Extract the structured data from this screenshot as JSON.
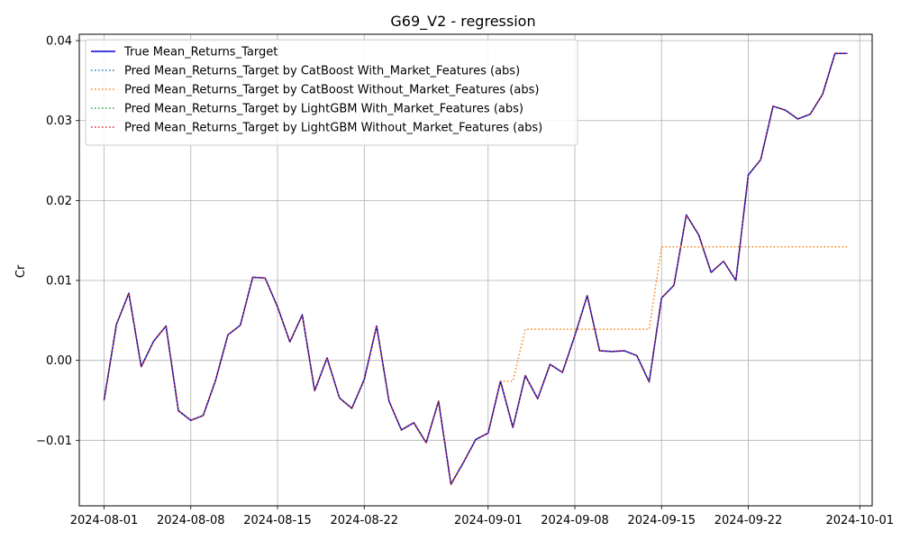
{
  "chart_data": {
    "type": "line",
    "title": "G69_V2 - regression",
    "xlabel": "",
    "ylabel": "Cr",
    "xlim": [
      "2024-07-30",
      "2024-10-02"
    ],
    "ylim": [
      -0.0182,
      0.0408
    ],
    "xticks": [
      "2024-08-01",
      "2024-08-08",
      "2024-08-15",
      "2024-08-22",
      "2024-09-01",
      "2024-09-08",
      "2024-09-15",
      "2024-09-22",
      "2024-10-01"
    ],
    "yticks": [
      -0.01,
      0.0,
      0.01,
      0.02,
      0.03,
      0.04
    ],
    "ytick_labels": [
      "−0.01",
      "0.00",
      "0.01",
      "0.02",
      "0.03",
      "0.04"
    ],
    "grid": true,
    "legend_position": "top-left",
    "x": [
      "2024-08-01",
      "2024-08-02",
      "2024-08-03",
      "2024-08-04",
      "2024-08-05",
      "2024-08-06",
      "2024-08-07",
      "2024-08-08",
      "2024-08-09",
      "2024-08-10",
      "2024-08-11",
      "2024-08-12",
      "2024-08-13",
      "2024-08-14",
      "2024-08-15",
      "2024-08-16",
      "2024-08-17",
      "2024-08-18",
      "2024-08-19",
      "2024-08-20",
      "2024-08-21",
      "2024-08-22",
      "2024-08-23",
      "2024-08-24",
      "2024-08-25",
      "2024-08-26",
      "2024-08-27",
      "2024-08-28",
      "2024-08-29",
      "2024-08-30",
      "2024-08-31",
      "2024-09-01",
      "2024-09-02",
      "2024-09-03",
      "2024-09-04",
      "2024-09-05",
      "2024-09-06",
      "2024-09-07",
      "2024-09-08",
      "2024-09-09",
      "2024-09-10",
      "2024-09-11",
      "2024-09-12",
      "2024-09-13",
      "2024-09-14",
      "2024-09-15",
      "2024-09-16",
      "2024-09-17",
      "2024-09-18",
      "2024-09-19",
      "2024-09-20",
      "2024-09-21",
      "2024-09-22",
      "2024-09-23",
      "2024-09-24",
      "2024-09-25",
      "2024-09-26",
      "2024-09-27",
      "2024-09-28",
      "2024-09-29",
      "2024-09-30"
    ],
    "series": [
      {
        "name": "True Mean_Returns_Target",
        "color": "#0000cd",
        "style": "solid",
        "values": [
          -0.005,
          0.0045,
          0.0084,
          -0.0008,
          0.0024,
          0.0043,
          -0.0063,
          -0.0075,
          -0.0069,
          -0.0025,
          0.0032,
          0.0044,
          0.0104,
          0.0103,
          0.0067,
          0.0023,
          0.0057,
          -0.0038,
          0.0003,
          -0.0047,
          -0.006,
          -0.0024,
          0.0043,
          -0.0051,
          -0.0087,
          -0.0078,
          -0.0103,
          -0.0051,
          -0.0155,
          -0.0128,
          -0.0099,
          -0.0091,
          -0.0026,
          -0.0084,
          -0.0019,
          -0.0048,
          -0.0005,
          -0.0015,
          0.0031,
          0.0081,
          0.0012,
          0.0011,
          0.0012,
          0.0006,
          -0.0027,
          0.0078,
          0.0094,
          0.0182,
          0.0157,
          0.011,
          0.0124,
          0.01,
          0.0232,
          0.0251,
          0.0318,
          0.0313,
          0.0302,
          0.0308,
          0.0333,
          0.0384,
          0.0384
        ]
      },
      {
        "name": "Pred Mean_Returns_Target by CatBoost With_Market_Features (abs)",
        "color": "#1f77b4",
        "style": "dotted",
        "values": [
          -0.005,
          0.0045,
          0.0084,
          -0.0008,
          0.0024,
          0.0043,
          -0.0063,
          -0.0075,
          -0.0069,
          -0.0025,
          0.0032,
          0.0044,
          0.0104,
          0.0103,
          0.0067,
          0.0023,
          0.0057,
          -0.0038,
          0.0003,
          -0.0047,
          -0.006,
          -0.0024,
          0.0043,
          -0.0051,
          -0.0087,
          -0.0078,
          -0.0103,
          -0.0051,
          -0.0155,
          -0.0128,
          -0.0099,
          -0.0091,
          -0.0026,
          -0.0084,
          -0.0019,
          -0.0048,
          -0.0005,
          -0.0015,
          0.0031,
          0.0081,
          0.0012,
          0.0011,
          0.0012,
          0.0006,
          -0.0027,
          0.0078,
          0.0094,
          0.0182,
          0.0157,
          0.011,
          0.0124,
          0.01,
          0.0232,
          0.0251,
          0.0318,
          0.0313,
          0.0302,
          0.0308,
          0.0333,
          0.0384,
          0.0384
        ]
      },
      {
        "name": "Pred Mean_Returns_Target by CatBoost Without_Market_Features (abs)",
        "color": "#ff7f0e",
        "style": "dotted",
        "values": [
          -0.005,
          0.0045,
          0.0084,
          -0.0008,
          0.0024,
          0.0043,
          -0.0063,
          -0.0075,
          -0.0069,
          -0.0025,
          0.0032,
          0.0044,
          0.0104,
          0.0103,
          0.0067,
          0.0023,
          0.0057,
          -0.0038,
          0.0003,
          -0.0047,
          -0.006,
          -0.0024,
          0.0043,
          -0.0051,
          -0.0087,
          -0.0078,
          -0.0103,
          -0.0051,
          -0.0155,
          -0.0128,
          -0.0099,
          -0.0091,
          -0.0026,
          -0.0026,
          0.0039,
          0.0039,
          0.0039,
          0.0039,
          0.0039,
          0.0039,
          0.0039,
          0.0039,
          0.0039,
          0.0039,
          0.0039,
          0.0142,
          0.0142,
          0.0142,
          0.0142,
          0.0142,
          0.0142,
          0.0142,
          0.0142,
          0.0142,
          0.0142,
          0.0142,
          0.0142,
          0.0142,
          0.0142,
          0.0142,
          0.0142
        ]
      },
      {
        "name": "Pred Mean_Returns_Target by LightGBM With_Market_Features (abs)",
        "color": "#2ca02c",
        "style": "dotted",
        "values": [
          -0.005,
          0.0045,
          0.0084,
          -0.0008,
          0.0024,
          0.0043,
          -0.0063,
          -0.0075,
          -0.0069,
          -0.0025,
          0.0032,
          0.0044,
          0.0104,
          0.0103,
          0.0067,
          0.0023,
          0.0057,
          -0.0038,
          0.0003,
          -0.0047,
          -0.006,
          -0.0024,
          0.0043,
          -0.0051,
          -0.0087,
          -0.0078,
          -0.0103,
          -0.0051,
          -0.0155,
          -0.0128,
          -0.0099,
          -0.0091,
          -0.0026,
          -0.0084,
          -0.0019,
          -0.0048,
          -0.0005,
          -0.0015,
          0.0031,
          0.0081,
          0.0012,
          0.0011,
          0.0012,
          0.0006,
          -0.0027,
          0.0078,
          0.0094,
          0.0182,
          0.0157,
          0.011,
          0.0124,
          0.01,
          0.0232,
          0.0251,
          0.0318,
          0.0313,
          0.0302,
          0.0308,
          0.0333,
          0.0384,
          0.0384
        ]
      },
      {
        "name": "Pred Mean_Returns_Target by LightGBM Without_Market_Features (abs)",
        "color": "#d62728",
        "style": "dotted",
        "values": [
          -0.005,
          0.0045,
          0.0084,
          -0.0008,
          0.0024,
          0.0043,
          -0.0063,
          -0.0075,
          -0.0069,
          -0.0025,
          0.0032,
          0.0044,
          0.0104,
          0.0103,
          0.0067,
          0.0023,
          0.0057,
          -0.0038,
          0.0003,
          -0.0047,
          -0.006,
          -0.0024,
          0.0043,
          -0.0051,
          -0.0087,
          -0.0078,
          -0.0103,
          -0.0051,
          -0.0155,
          -0.0128,
          -0.0099,
          -0.0091,
          -0.0026,
          -0.0084,
          -0.0019,
          -0.0048,
          -0.0005,
          -0.0015,
          0.0031,
          0.0081,
          0.0012,
          0.0011,
          0.0012,
          0.0006,
          -0.0027,
          0.0078,
          0.0094,
          0.0182,
          0.0157,
          0.011,
          0.0124,
          0.01,
          0.0232,
          0.0251,
          0.0318,
          0.0313,
          0.0302,
          0.0308,
          0.0333,
          0.0384,
          0.0384
        ]
      }
    ]
  }
}
